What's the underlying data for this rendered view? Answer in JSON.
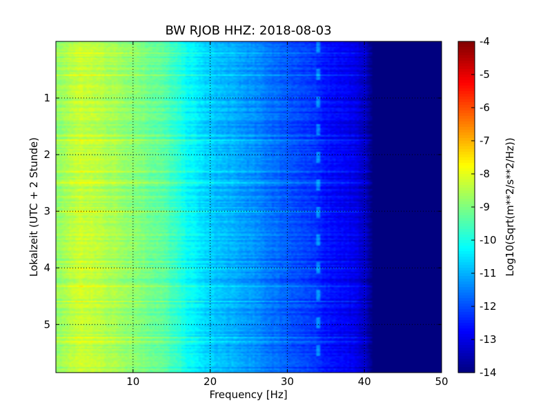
{
  "chart_data": {
    "type": "heatmap",
    "title": "BW RJOB HHZ: 2018-08-03",
    "xlabel": "Frequency [Hz]",
    "ylabel": "Lokalzeit (UTC + 2 Stunde)",
    "xlim": [
      0,
      50
    ],
    "ylim": [
      5.85,
      0
    ],
    "x_ticks": [
      10,
      20,
      30,
      40,
      50
    ],
    "y_ticks": [
      1,
      2,
      3,
      4,
      5
    ],
    "grid": true,
    "colormap": "jet",
    "colorbar": {
      "label": "Log10(Sqrt(m**2/s**2/Hz))",
      "range": [
        -14,
        -4
      ],
      "ticks": [
        -4,
        -5,
        -6,
        -7,
        -8,
        -9,
        -10,
        -11,
        -12,
        -13,
        -14
      ]
    },
    "frequency_profile": {
      "frequency_hz": [
        0,
        3,
        6,
        10,
        14,
        17,
        20,
        25,
        30,
        34,
        35,
        38,
        40,
        41,
        50
      ],
      "log_psd": [
        -8.9,
        -8.3,
        -8.5,
        -8.9,
        -9.4,
        -10.2,
        -10.8,
        -11.3,
        -11.9,
        -12.4,
        -12.6,
        -12.9,
        -13.3,
        -14.0,
        -14.0
      ]
    },
    "spectral_line_hz": 34,
    "colors": {
      "colormap_stops": [
        "#00007f",
        "#0000ff",
        "#007fff",
        "#00ffff",
        "#7fff7f",
        "#ffff00",
        "#ff7f00",
        "#ff0000",
        "#7f0000"
      ]
    }
  }
}
